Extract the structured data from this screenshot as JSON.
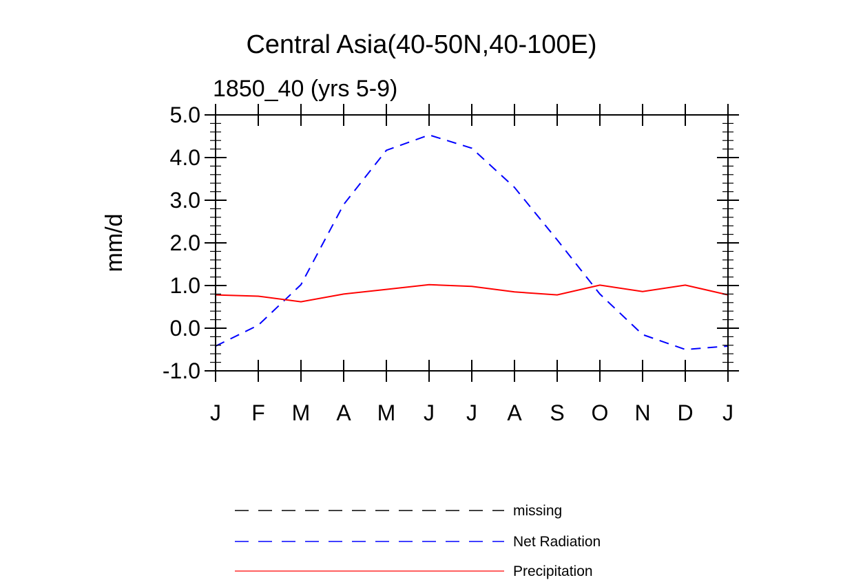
{
  "chart_data": {
    "type": "line",
    "title": "Central Asia(40-50N,40-100E)",
    "subtitle": "1850_40 (yrs 5-9)",
    "xlabel": "",
    "ylabel": "mm/d",
    "x_tick_labels": [
      "J",
      "F",
      "M",
      "A",
      "M",
      "J",
      "J",
      "A",
      "S",
      "O",
      "N",
      "D",
      "J"
    ],
    "y_tick_labels": [
      "5.0",
      "4.0",
      "3.0",
      "2.0",
      "1.0",
      "0.0",
      "-1.0"
    ],
    "y_tick_values": [
      5,
      4,
      3,
      2,
      1,
      0,
      -1
    ],
    "ylim": [
      -1.0,
      5.0
    ],
    "xlim": [
      0,
      12
    ],
    "grid": false,
    "legend_position": "bottom",
    "series": [
      {
        "name": "missing",
        "color": "#000000",
        "dash": "dashed",
        "values": []
      },
      {
        "name": "Net Radiation",
        "color": "#0000ff",
        "dash": "dashed",
        "values": [
          -0.42,
          0.07,
          1.02,
          2.9,
          4.17,
          4.53,
          4.22,
          3.3,
          2.07,
          0.8,
          -0.15,
          -0.5,
          -0.42
        ]
      },
      {
        "name": "Precipitation",
        "color": "#ff0000",
        "dash": "solid",
        "values": [
          0.78,
          0.75,
          0.62,
          0.8,
          0.91,
          1.02,
          0.98,
          0.85,
          0.78,
          1.01,
          0.86,
          1.01,
          0.78
        ]
      }
    ]
  }
}
